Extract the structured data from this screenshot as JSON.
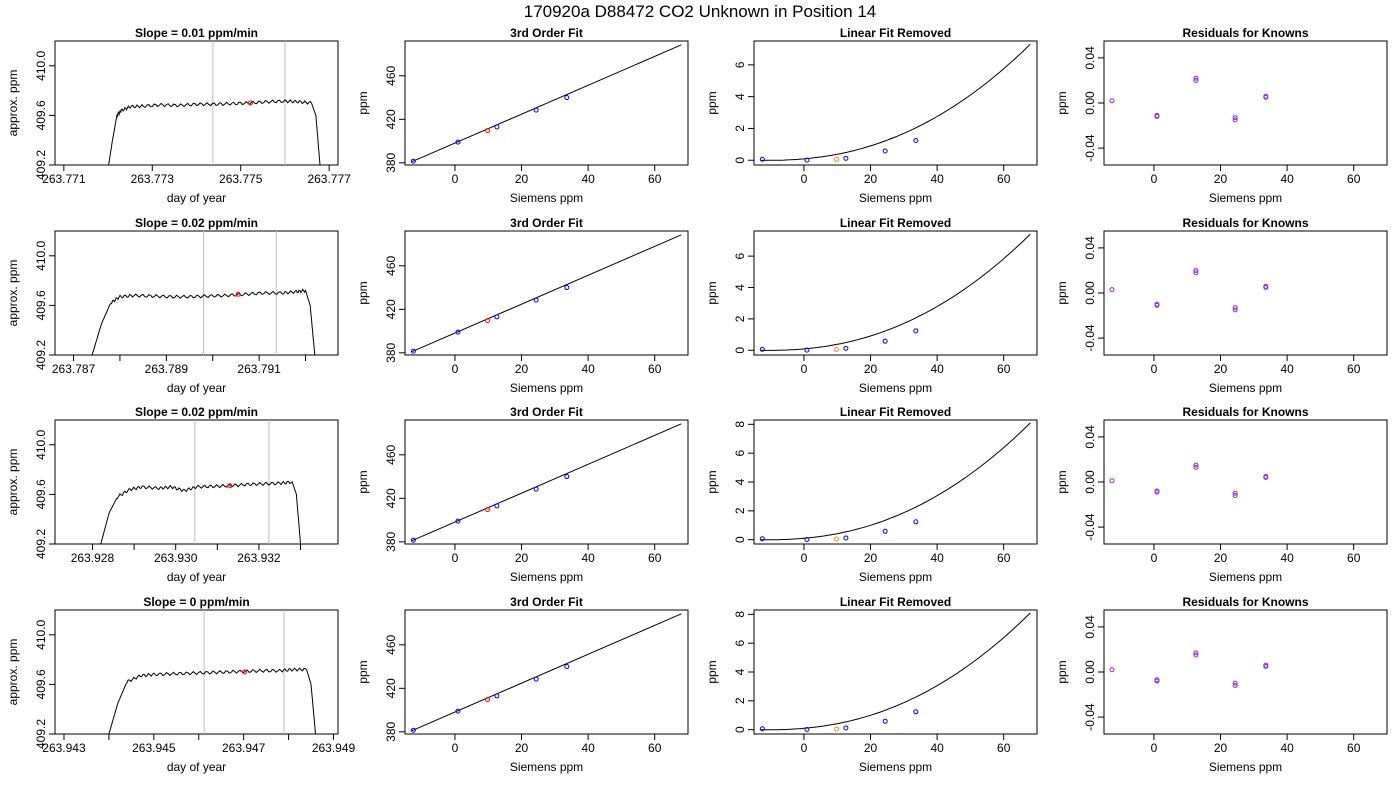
{
  "suptitle": "170920a     D88472   CO2 Unknown in Position  14",
  "colors": {
    "known": "#0000ff",
    "unknown": "#ff0000",
    "residual": "#8a2be2",
    "unknown_linear": "#ff8c00",
    "vline": "#bebebe",
    "line": "#000000"
  },
  "rows": [
    {
      "ts": {
        "title": "Slope =  0.01  ppm/min",
        "xlabel": "day of year",
        "ylabel": "approx. ppm",
        "xlim": [
          263.7708,
          263.7772
        ],
        "ylim": [
          409.2,
          410.2
        ],
        "xticks": [
          263.771,
          263.773,
          263.775,
          263.777
        ],
        "xtick_labels": [
          "263.771",
          "263.773",
          "263.775",
          "263.777"
        ],
        "yticks": [
          409.2,
          409.6,
          410.0
        ],
        "ytick_labels": [
          "409.2",
          "409.6",
          "410.0"
        ],
        "vlines": [
          263.77437,
          263.776
        ],
        "marker": [
          263.77522,
          409.7
        ],
        "trace": [
          [
            263.772,
            409.17
          ],
          [
            263.7721,
            409.4
          ],
          [
            263.7722,
            409.6
          ],
          [
            263.7723,
            409.64
          ],
          [
            263.7725,
            409.67
          ],
          [
            263.7728,
            409.675
          ],
          [
            263.7732,
            409.685
          ],
          [
            263.7736,
            409.68
          ],
          [
            263.774,
            409.69
          ],
          [
            263.7744,
            409.69
          ],
          [
            263.7748,
            409.695
          ],
          [
            263.7752,
            409.7
          ],
          [
            263.7756,
            409.71
          ],
          [
            263.776,
            409.715
          ],
          [
            263.7763,
            409.71
          ],
          [
            263.7766,
            409.7
          ],
          [
            263.7767,
            409.6
          ],
          [
            263.7768,
            409.17
          ]
        ]
      },
      "fit": {
        "title": "3rd Order Fit",
        "xlabel": "Siemens ppm",
        "ylabel": "ppm"
      },
      "lin": {
        "title": "Linear Fit Removed",
        "xlabel": "Siemens ppm",
        "ylabel": "ppm",
        "ylim": [
          -0.3,
          7.5
        ],
        "yticks": [
          0,
          2,
          4,
          6
        ],
        "ytick_labels": [
          "0",
          "2",
          "4",
          "6"
        ],
        "points": [
          [
            -12.5,
            0.06
          ],
          [
            0.9,
            0.01
          ],
          [
            12.6,
            0.12
          ],
          [
            24.4,
            0.58
          ],
          [
            33.6,
            1.24
          ]
        ],
        "unknown": [
          9.8,
          0.05
        ]
      },
      "res": {
        "title": "Residuals for Knowns",
        "xlabel": "Siemens ppm",
        "ylabel": "ppm",
        "points": [
          [
            -12.6,
            0.002
          ],
          [
            0.9,
            -0.012
          ],
          [
            0.9,
            -0.011
          ],
          [
            12.6,
            0.022
          ],
          [
            12.6,
            0.02
          ],
          [
            24.4,
            -0.015
          ],
          [
            24.4,
            -0.013
          ],
          [
            33.6,
            0.005
          ],
          [
            33.6,
            0.006
          ]
        ]
      }
    },
    {
      "ts": {
        "title": "Slope =  0.02  ppm/min",
        "xlabel": "day of year",
        "ylabel": "approx. ppm",
        "xlim": [
          263.7866,
          263.7927
        ],
        "ylim": [
          409.2,
          410.2
        ],
        "xticks": [
          263.787,
          263.788,
          263.789,
          263.79,
          263.791,
          263.792
        ],
        "xtick_labels": [
          "263.787",
          "",
          "263.789",
          "",
          "263.791",
          ""
        ],
        "yticks": [
          409.2,
          409.6,
          410.0
        ],
        "ytick_labels": [
          "409.2",
          "409.6",
          "410.0"
        ],
        "vlines": [
          263.7898,
          263.79137
        ],
        "marker": [
          263.79055,
          409.69
        ],
        "trace": [
          [
            263.7874,
            409.2
          ],
          [
            263.7876,
            409.45
          ],
          [
            263.7878,
            409.62
          ],
          [
            263.788,
            409.67
          ],
          [
            263.7883,
            409.68
          ],
          [
            263.7887,
            409.675
          ],
          [
            263.7891,
            409.67
          ],
          [
            263.7895,
            409.67
          ],
          [
            263.7899,
            409.675
          ],
          [
            263.7903,
            409.68
          ],
          [
            263.7907,
            409.69
          ],
          [
            263.7911,
            409.7
          ],
          [
            263.7915,
            409.7
          ],
          [
            263.7918,
            409.71
          ],
          [
            263.792,
            409.72
          ],
          [
            263.7921,
            409.6
          ],
          [
            263.7922,
            409.2
          ]
        ]
      },
      "fit": {
        "title": "3rd Order Fit",
        "xlabel": "Siemens ppm",
        "ylabel": "ppm"
      },
      "lin": {
        "title": "Linear Fit Removed",
        "xlabel": "Siemens ppm",
        "ylabel": "ppm",
        "ylim": [
          -0.3,
          7.6
        ],
        "yticks": [
          0,
          2,
          4,
          6
        ],
        "ytick_labels": [
          "0",
          "2",
          "4",
          "6"
        ],
        "points": [
          [
            -12.5,
            0.06
          ],
          [
            0.9,
            0.01
          ],
          [
            12.6,
            0.12
          ],
          [
            24.4,
            0.58
          ],
          [
            33.6,
            1.24
          ]
        ],
        "unknown": [
          9.8,
          0.05
        ]
      },
      "res": {
        "title": "Residuals for Knowns",
        "xlabel": "Siemens ppm",
        "ylabel": "ppm",
        "points": [
          [
            -12.6,
            0.003
          ],
          [
            0.9,
            -0.011
          ],
          [
            0.9,
            -0.01
          ],
          [
            12.6,
            0.02
          ],
          [
            12.6,
            0.018
          ],
          [
            24.4,
            -0.015
          ],
          [
            24.4,
            -0.013
          ],
          [
            33.6,
            0.005
          ],
          [
            33.6,
            0.006
          ]
        ]
      }
    },
    {
      "ts": {
        "title": "Slope =  0.02  ppm/min",
        "xlabel": "day of year",
        "ylabel": "approx. ppm",
        "xlim": [
          263.9271,
          263.9339
        ],
        "ylim": [
          409.2,
          410.2
        ],
        "xticks": [
          263.928,
          263.929,
          263.93,
          263.931,
          263.932,
          263.933
        ],
        "xtick_labels": [
          "263.928",
          "",
          "263.930",
          "",
          "263.932",
          ""
        ],
        "yticks": [
          409.2,
          409.6,
          410.0
        ],
        "ytick_labels": [
          "409.2",
          "409.6",
          "410.0"
        ],
        "vlines": [
          263.93046,
          263.93224
        ],
        "marker": [
          263.9313,
          409.67
        ],
        "trace": [
          [
            263.9282,
            409.2
          ],
          [
            263.9284,
            409.45
          ],
          [
            263.9286,
            409.58
          ],
          [
            263.9289,
            409.64
          ],
          [
            263.9292,
            409.66
          ],
          [
            263.9296,
            409.65
          ],
          [
            263.9299,
            409.66
          ],
          [
            263.9302,
            409.63
          ],
          [
            263.9305,
            409.66
          ],
          [
            263.9309,
            409.665
          ],
          [
            263.9313,
            409.67
          ],
          [
            263.9317,
            409.68
          ],
          [
            263.9321,
            409.685
          ],
          [
            263.9325,
            409.69
          ],
          [
            263.9328,
            409.7
          ],
          [
            263.9329,
            409.6
          ],
          [
            263.933,
            409.2
          ]
        ]
      },
      "fit": {
        "title": "3rd Order Fit",
        "xlabel": "Siemens ppm",
        "ylabel": "ppm"
      },
      "lin": {
        "title": "Linear Fit Removed",
        "xlabel": "Siemens ppm",
        "ylabel": "ppm",
        "ylim": [
          -0.3,
          8.3
        ],
        "yticks": [
          0,
          2,
          4,
          6,
          8
        ],
        "ytick_labels": [
          "0",
          "2",
          "4",
          "6",
          "8"
        ],
        "points": [
          [
            -12.5,
            0.06
          ],
          [
            0.9,
            0.01
          ],
          [
            12.6,
            0.12
          ],
          [
            24.4,
            0.58
          ],
          [
            33.6,
            1.24
          ]
        ],
        "unknown": [
          9.8,
          0.05
        ]
      },
      "res": {
        "title": "Residuals for Knowns",
        "xlabel": "Siemens ppm",
        "ylabel": "ppm",
        "points": [
          [
            -12.6,
            0.001
          ],
          [
            0.9,
            -0.009
          ],
          [
            0.9,
            -0.008
          ],
          [
            12.6,
            0.015
          ],
          [
            12.6,
            0.013
          ],
          [
            24.4,
            -0.012
          ],
          [
            24.4,
            -0.01
          ],
          [
            33.6,
            0.004
          ],
          [
            33.6,
            0.005
          ]
        ]
      }
    },
    {
      "ts": {
        "title": "Slope =  0  ppm/min",
        "xlabel": "day of year",
        "ylabel": "approx. ppm",
        "xlim": [
          263.9428,
          263.9491
        ],
        "ylim": [
          409.2,
          410.2
        ],
        "xticks": [
          263.943,
          263.944,
          263.945,
          263.946,
          263.947,
          263.948,
          263.949
        ],
        "xtick_labels": [
          "263.943",
          "",
          "263.945",
          "",
          "263.947",
          "",
          "263.949"
        ],
        "yticks": [
          409.2,
          409.6,
          410.0
        ],
        "ytick_labels": [
          "409.2",
          "409.6",
          "410.0"
        ],
        "vlines": [
          263.94612,
          263.9479
        ],
        "marker": [
          263.94702,
          409.7
        ],
        "trace": [
          [
            263.944,
            409.2
          ],
          [
            263.9442,
            409.45
          ],
          [
            263.9444,
            409.62
          ],
          [
            263.9447,
            409.67
          ],
          [
            263.945,
            409.68
          ],
          [
            263.9454,
            409.685
          ],
          [
            263.9458,
            409.69
          ],
          [
            263.9462,
            409.695
          ],
          [
            263.9466,
            409.7
          ],
          [
            263.947,
            409.705
          ],
          [
            263.9474,
            409.71
          ],
          [
            263.9478,
            409.71
          ],
          [
            263.9481,
            409.72
          ],
          [
            263.9484,
            409.72
          ],
          [
            263.9485,
            409.6
          ],
          [
            263.9486,
            409.2
          ]
        ]
      },
      "fit": {
        "title": "3rd Order Fit",
        "xlabel": "Siemens ppm",
        "ylabel": "ppm"
      },
      "lin": {
        "title": "Linear Fit Removed",
        "xlabel": "Siemens ppm",
        "ylabel": "ppm",
        "ylim": [
          -0.3,
          8.3
        ],
        "yticks": [
          0,
          2,
          4,
          6,
          8
        ],
        "ytick_labels": [
          "0",
          "2",
          "4",
          "6",
          "8"
        ],
        "points": [
          [
            -12.5,
            0.06
          ],
          [
            0.9,
            0.01
          ],
          [
            12.6,
            0.12
          ],
          [
            24.4,
            0.58
          ],
          [
            33.6,
            1.24
          ]
        ],
        "unknown": [
          9.8,
          0.05
        ]
      },
      "res": {
        "title": "Residuals for Knowns",
        "xlabel": "Siemens ppm",
        "ylabel": "ppm",
        "points": [
          [
            -12.6,
            0.002
          ],
          [
            0.9,
            -0.008
          ],
          [
            0.9,
            -0.007
          ],
          [
            12.6,
            0.017
          ],
          [
            12.6,
            0.015
          ],
          [
            24.4,
            -0.012
          ],
          [
            24.4,
            -0.01
          ],
          [
            33.6,
            0.005
          ],
          [
            33.6,
            0.006
          ]
        ]
      }
    }
  ],
  "shared": {
    "siemens_xlim": [
      -15,
      70
    ],
    "siemens_xticks": [
      0,
      20,
      40,
      60
    ],
    "siemens_xtick_labels": [
      "0",
      "20",
      "40",
      "60"
    ],
    "fit_ylim": [
      378,
      492
    ],
    "fit_yticks": [
      380,
      420,
      460
    ],
    "fit_ytick_labels": [
      "380",
      "420",
      "460"
    ],
    "fit_line": [
      [
        -13,
        380.9
      ],
      [
        68,
        488.5
      ]
    ],
    "fit_points": [
      [
        -12.5,
        381.5
      ],
      [
        0.9,
        399.0
      ],
      [
        12.6,
        413.0
      ],
      [
        24.4,
        428.5
      ],
      [
        33.6,
        440.0
      ]
    ],
    "fit_unknown": [
      9.8,
      409.6
    ],
    "res_ylim": [
      -0.055,
      0.055
    ],
    "res_yticks": [
      -0.04,
      0.0,
      0.04
    ],
    "res_ytick_labels": [
      "-0.04",
      "0.00",
      "0.04"
    ]
  },
  "chart_data": [
    {
      "type": "line",
      "title": "Slope =  0.01  ppm/min",
      "xlabel": "day of year",
      "ylabel": "approx. ppm",
      "ylim": [
        409.2,
        410.2
      ],
      "series": [
        {
          "x": [
            263.772,
            263.7723,
            263.7732,
            263.7744,
            263.7752,
            263.776,
            263.7766,
            263.7768
          ],
          "values": [
            409.17,
            409.64,
            409.685,
            409.69,
            409.7,
            409.715,
            409.7,
            409.17
          ]
        }
      ]
    },
    {
      "type": "line",
      "title": "3rd Order Fit",
      "xlabel": "Siemens ppm",
      "ylabel": "ppm",
      "ylim": [
        378,
        492
      ],
      "series": [
        {
          "x": [
            -12.5,
            0.9,
            9.8,
            12.6,
            24.4,
            33.6
          ],
          "values": [
            381.5,
            399.0,
            409.6,
            413.0,
            428.5,
            440.0
          ]
        }
      ]
    },
    {
      "type": "line",
      "title": "Linear Fit Removed",
      "xlabel": "Siemens ppm",
      "ylabel": "ppm",
      "series": [
        {
          "x": [
            -12.5,
            0.9,
            9.8,
            12.6,
            24.4,
            33.6
          ],
          "values": [
            0.06,
            0.01,
            0.05,
            0.12,
            0.58,
            1.24
          ]
        }
      ]
    },
    {
      "type": "scatter",
      "title": "Residuals for Knowns",
      "xlabel": "Siemens ppm",
      "ylabel": "ppm",
      "ylim": [
        -0.055,
        0.055
      ],
      "series": [
        {
          "x": [
            -12.6,
            0.9,
            12.6,
            24.4,
            33.6
          ],
          "values": [
            0.002,
            -0.012,
            0.022,
            -0.015,
            0.005
          ]
        }
      ]
    }
  ]
}
